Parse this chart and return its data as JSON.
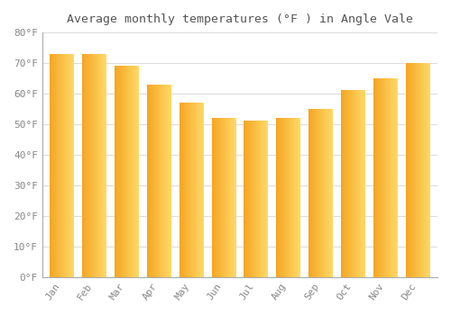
{
  "title": "Average monthly temperatures (°F ) in Angle Vale",
  "months": [
    "Jan",
    "Feb",
    "Mar",
    "Apr",
    "May",
    "Jun",
    "Jul",
    "Aug",
    "Sep",
    "Oct",
    "Nov",
    "Dec"
  ],
  "values": [
    73,
    73,
    69,
    63,
    57,
    52,
    51,
    52,
    55,
    61,
    65,
    70
  ],
  "bar_color_left": "#F5A623",
  "bar_color_right": "#FFD966",
  "background_color": "#FFFFFF",
  "plot_bg_color": "#FFFFFF",
  "grid_color": "#DDDDDD",
  "text_color": "#888888",
  "title_color": "#555555",
  "ylim": [
    0,
    80
  ],
  "yticks": [
    0,
    10,
    20,
    30,
    40,
    50,
    60,
    70,
    80
  ],
  "ylabel_suffix": "°F"
}
